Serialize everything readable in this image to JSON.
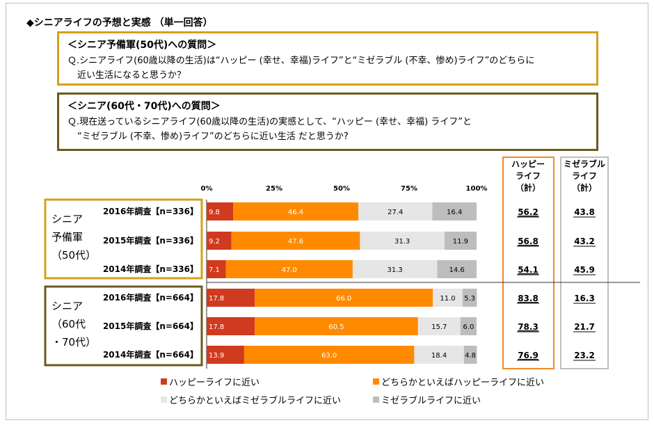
{
  "title": "◆シニアライフの予想と実感 （単一回答）",
  "question1": {
    "head": "＜シニア予備軍(50代)への質問＞",
    "line1": "Ｑ.シニアライフ(60歳以降の生活)は“ハッピー (幸せ、幸福)ライフ”と“ミゼラブル (不幸、惨め)ライフ”のどちらに",
    "line2": "近い生活になると思うか？"
  },
  "question2": {
    "head": "＜シニア(60代・70代)への質問＞",
    "line1": "Ｑ.現在送っているシニアライフ(60歳以降の生活)の実感として、“ハッピー (幸せ、幸福) ライフ”と",
    "line2": "“ミゼラブル (不幸、惨め)ライフ”のどちらに近い生活 だと思うか?"
  },
  "headers": {
    "happy": [
      "ハッピー",
      "ライフ",
      "（計）"
    ],
    "miserable": [
      "ミゼラブル",
      "ライフ",
      "（計）"
    ]
  },
  "groups": [
    {
      "lines": [
        "シニア",
        "予備軍",
        "（50代）"
      ]
    },
    {
      "lines": [
        "シニア",
        "（60代",
        "・70代）"
      ]
    }
  ],
  "chart_data": {
    "type": "bar",
    "orientation": "horizontal-stacked-100",
    "xlim": [
      0,
      100
    ],
    "ticks": [
      "0%",
      "25%",
      "50%",
      "75%",
      "100%"
    ],
    "categories": [
      "2016年調査【n=336】",
      "2015年調査【n=336】",
      "2014年調査【n=336】",
      "2016年調査【n=664】",
      "2015年調査【n=664】",
      "2014年調査【n=664】"
    ],
    "series": [
      {
        "name": "ハッピーライフに近い",
        "color": "#d03a1f",
        "values": [
          9.8,
          9.2,
          7.1,
          17.8,
          17.8,
          13.9
        ]
      },
      {
        "name": "どちらかといえばハッピーライフに近い",
        "color": "#ff8a00",
        "values": [
          46.4,
          47.6,
          47.0,
          66.0,
          60.5,
          63.0
        ]
      },
      {
        "name": "どちらかといえばミゼラブルライフに近い",
        "color": "#e6e6e6",
        "values": [
          27.4,
          31.3,
          31.3,
          11.0,
          15.7,
          18.4
        ]
      },
      {
        "name": "ミゼラブルライフに近い",
        "color": "#bdbdbd",
        "values": [
          16.4,
          11.9,
          14.6,
          5.3,
          6.0,
          4.8
        ]
      }
    ],
    "happy_total": [
      "56.2",
      "56.8",
      "54.1",
      "83.8",
      "78.3",
      "76.9"
    ],
    "miserable_total": [
      "43.8",
      "43.2",
      "45.9",
      "16.3",
      "21.7",
      "23.2"
    ]
  }
}
